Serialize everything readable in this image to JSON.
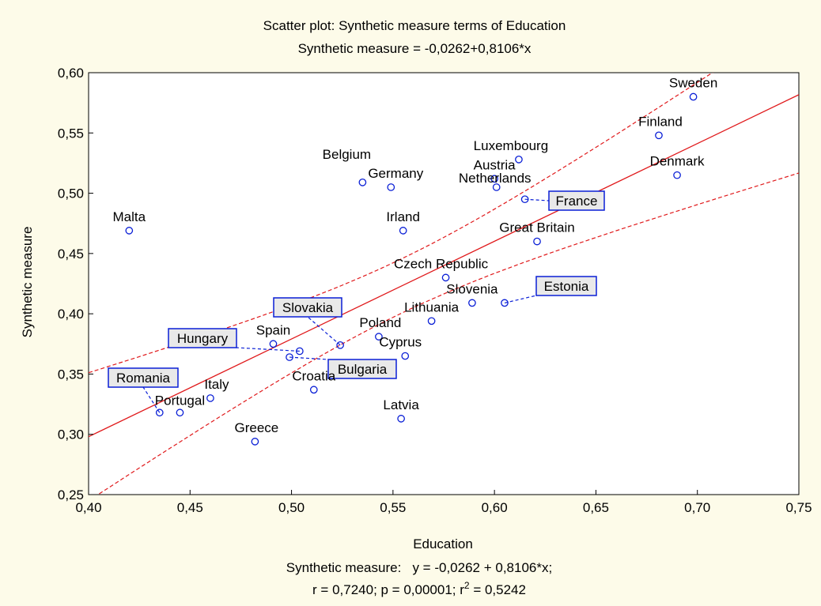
{
  "chart_data": {
    "type": "scatter",
    "title": "Scatter plot: Synthetic measure terms of Education",
    "subtitle": "Synthetic measure = -0,0262+0,8106*x",
    "xlabel": "Education",
    "ylabel": "Synthetic measure",
    "xlim": [
      0.4,
      0.75
    ],
    "ylim": [
      0.25,
      0.6
    ],
    "x_ticks": [
      "0,40",
      "0,45",
      "0,50",
      "0,55",
      "0,60",
      "0,65",
      "0,70",
      "0,75"
    ],
    "y_ticks": [
      "0,25",
      "0,30",
      "0,35",
      "0,40",
      "0,45",
      "0,50",
      "0,55",
      "0,60"
    ],
    "grid": false,
    "regression": {
      "intercept": -0.0262,
      "slope": 0.8106,
      "confidence_band": "95% (dashed)"
    },
    "footer": {
      "line1": "Synthetic measure:   y = -0,0262 + 0,8106*x;",
      "line2_prefix": "r = 0,7240; p = 0,00001; r",
      "line2_sup": "2",
      "line2_suffix": " = 0,5242"
    },
    "points": [
      {
        "label": "Malta",
        "x": 0.42,
        "y": 0.469
      },
      {
        "label": "Romania",
        "x": 0.435,
        "y": 0.318,
        "boxed": true
      },
      {
        "label": "Portugal",
        "x": 0.445,
        "y": 0.318
      },
      {
        "label": "Italy",
        "x": 0.46,
        "y": 0.33
      },
      {
        "label": "Greece",
        "x": 0.482,
        "y": 0.294
      },
      {
        "label": "Spain",
        "x": 0.491,
        "y": 0.375
      },
      {
        "label": "Hungary",
        "x": 0.504,
        "y": 0.369,
        "boxed": true
      },
      {
        "label": "Bulgaria",
        "x": 0.499,
        "y": 0.364,
        "boxed": true
      },
      {
        "label": "Croatia",
        "x": 0.511,
        "y": 0.337
      },
      {
        "label": "Slovakia",
        "x": 0.524,
        "y": 0.374,
        "boxed": true
      },
      {
        "label": "Belgium",
        "x": 0.535,
        "y": 0.509
      },
      {
        "label": "Poland",
        "x": 0.543,
        "y": 0.381
      },
      {
        "label": "Germany",
        "x": 0.549,
        "y": 0.505
      },
      {
        "label": "Latvia",
        "x": 0.554,
        "y": 0.313
      },
      {
        "label": "Irland",
        "x": 0.555,
        "y": 0.469
      },
      {
        "label": "Cyprus",
        "x": 0.556,
        "y": 0.365
      },
      {
        "label": "Lithuania",
        "x": 0.569,
        "y": 0.394
      },
      {
        "label": "Czech Republic",
        "x": 0.576,
        "y": 0.43
      },
      {
        "label": "Slovenia",
        "x": 0.589,
        "y": 0.409
      },
      {
        "label": "Austria",
        "x": 0.6,
        "y": 0.512
      },
      {
        "label": "Netherlands",
        "x": 0.601,
        "y": 0.505
      },
      {
        "label": "Estonia",
        "x": 0.605,
        "y": 0.409,
        "boxed": true
      },
      {
        "label": "Luxembourg",
        "x": 0.612,
        "y": 0.528
      },
      {
        "label": "France",
        "x": 0.615,
        "y": 0.495,
        "boxed": true
      },
      {
        "label": "Great Britain",
        "x": 0.621,
        "y": 0.46
      },
      {
        "label": "Finland",
        "x": 0.681,
        "y": 0.548
      },
      {
        "label": "Denmark",
        "x": 0.69,
        "y": 0.515
      },
      {
        "label": "Sweden",
        "x": 0.698,
        "y": 0.58
      }
    ]
  }
}
